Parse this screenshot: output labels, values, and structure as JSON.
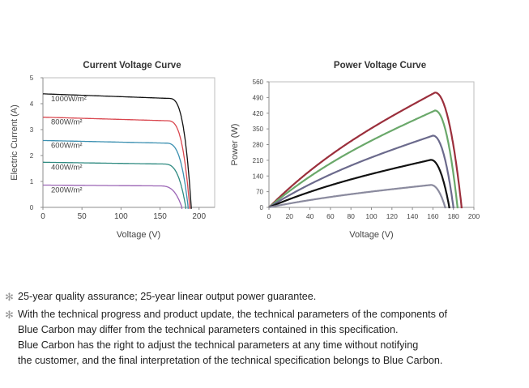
{
  "chart_data": [
    {
      "type": "line",
      "title": "Current Voltage Curve",
      "xlabel": "Voltage (V)",
      "ylabel": "Electric Current (A)",
      "xlim": [
        0,
        220
      ],
      "ylim": [
        0,
        5
      ],
      "x_ticks": [
        "0",
        "50",
        "100",
        "150",
        "200"
      ],
      "y_ticks": [
        "0",
        "1",
        "2",
        "3",
        "4",
        "5"
      ],
      "grid": false,
      "series": [
        {
          "name": "1000W/m²",
          "color": "#111111",
          "isc": 4.38,
          "voc": 190
        },
        {
          "name": "800W/m²",
          "color": "#d9464e",
          "isc": 3.48,
          "voc": 188
        },
        {
          "name": "600W/m²",
          "color": "#3a8fb0",
          "isc": 2.58,
          "voc": 186
        },
        {
          "name": "400W/m²",
          "color": "#2e8a80",
          "isc": 1.74,
          "voc": 183
        },
        {
          "name": "200W/m²",
          "color": "#9b64b5",
          "isc": 0.86,
          "voc": 178
        }
      ]
    },
    {
      "type": "line",
      "title": "Power Voltage Curve",
      "xlabel": "Voltage (V)",
      "ylabel": "Power (W)",
      "xlim": [
        0,
        200
      ],
      "ylim": [
        0,
        560
      ],
      "x_ticks": [
        "0",
        "20",
        "40",
        "60",
        "80",
        "100",
        "120",
        "140",
        "160",
        "180",
        "200"
      ],
      "y_ticks": [
        "0",
        "70",
        "140",
        "210",
        "280",
        "350",
        "420",
        "490",
        "560"
      ],
      "grid": false,
      "series": [
        {
          "color": "#9b2f3c",
          "pmax": 512,
          "vmp": 162,
          "voc": 188
        },
        {
          "color": "#6aa86a",
          "pmax": 432,
          "vmp": 162,
          "voc": 184
        },
        {
          "color": "#6b6a8c",
          "pmax": 320,
          "vmp": 160,
          "voc": 180
        },
        {
          "color": "#111111",
          "pmax": 212,
          "vmp": 158,
          "voc": 176
        },
        {
          "color": "#8a8a9e",
          "pmax": 100,
          "vmp": 158,
          "voc": 172
        }
      ]
    }
  ],
  "notes": {
    "star": "✻",
    "n1": "25-year quality assurance; 25-year linear output power guarantee.",
    "n2_l1": "With the technical progress and product update, the technical parameters of the components of",
    "n2_l2": "Blue Carbon may differ from the technical parameters contained in this specification.",
    "n2_l3": "Blue Carbon has the right to adjust the technical parameters at any time without notifying",
    "n2_l4": "the customer, and the final interpretation of the technical specification belongs to Blue Carbon."
  }
}
